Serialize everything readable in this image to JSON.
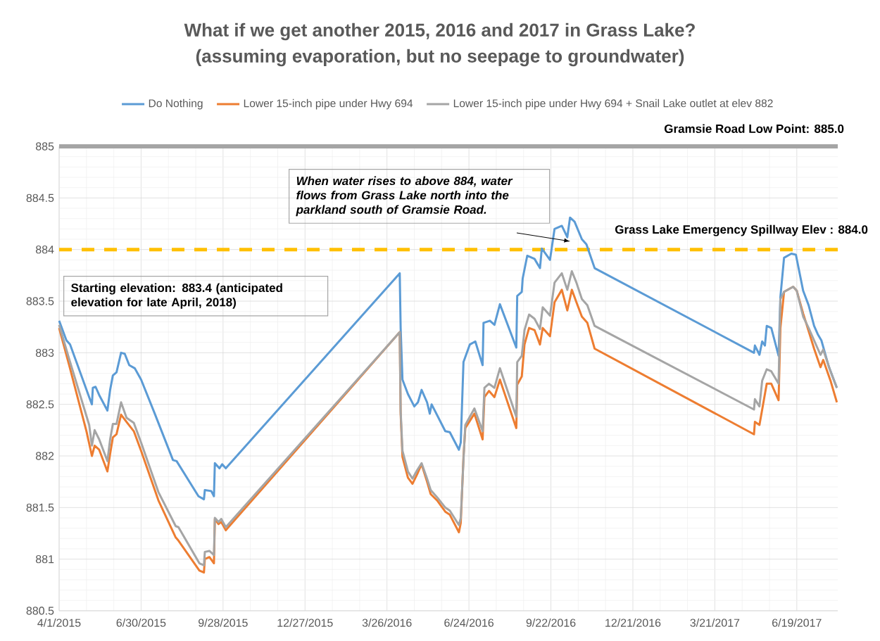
{
  "chart_data": {
    "type": "line",
    "title": "What if we get another 2015, 2016 and 2017 in Grass Lake?",
    "subtitle": "(assuming evaporation, but no seepage to groundwater)",
    "xlim": [
      "2015-04-01",
      "2017-08-03"
    ],
    "xticks": [
      {
        "value": "2015-04-01",
        "label": "4/1/2015"
      },
      {
        "value": "2015-06-30",
        "label": "6/30/2015"
      },
      {
        "value": "2015-09-28",
        "label": "9/28/2015"
      },
      {
        "value": "2015-12-27",
        "label": "12/27/2015"
      },
      {
        "value": "2016-03-26",
        "label": "3/26/2016"
      },
      {
        "value": "2016-06-24",
        "label": "6/24/2016"
      },
      {
        "value": "2016-09-22",
        "label": "9/22/2016"
      },
      {
        "value": "2016-12-21",
        "label": "12/21/2016"
      },
      {
        "value": "2017-03-21",
        "label": "3/21/2017"
      },
      {
        "value": "2017-06-19",
        "label": "6/19/2017"
      }
    ],
    "ylim": [
      880.5,
      885
    ],
    "yticks": [
      880.5,
      881,
      881.5,
      882,
      882.5,
      883,
      883.5,
      884,
      884.5,
      885
    ],
    "grid": true,
    "legend": "top",
    "ref_lines": [
      {
        "axis": "y",
        "value": 885,
        "label": "Gramsie Road Low Point: 885.0",
        "color": "#a5a5a5",
        "line_style": "solid"
      },
      {
        "axis": "y",
        "value": 884,
        "label": "Grass Lake Emergency Spillway Elev : 884.0",
        "color": "#ffc000",
        "line_style": "dashed"
      }
    ],
    "annotations": [
      "When water rises to above 884, water flows from Grass Lake north into the parkland south of Gramsie Road.",
      "Starting elevation: 883.4 (anticipated elevation for late April, 2018)"
    ],
    "series": [
      {
        "name": "Do Nothing",
        "color": "#5b9bd5",
        "x": [
          "2015-04-01",
          "2015-04-09",
          "2015-04-13",
          "2015-04-20",
          "2015-05-04",
          "2015-05-07",
          "2015-05-08",
          "2015-05-11",
          "2015-05-15",
          "2015-05-24",
          "2015-05-27",
          "2015-05-30",
          "2015-06-03",
          "2015-06-08",
          "2015-06-12",
          "2015-06-17",
          "2015-06-23",
          "2015-06-30",
          "2015-07-15",
          "2015-08-04",
          "2015-08-08",
          "2015-09-01",
          "2015-09-07",
          "2015-09-08",
          "2015-09-15",
          "2015-09-18",
          "2015-09-19",
          "2015-09-24",
          "2015-09-27",
          "2015-10-01",
          "2016-04-09",
          "2016-04-10",
          "2016-04-12",
          "2016-04-18",
          "2016-04-25",
          "2016-04-29",
          "2016-05-03",
          "2016-05-09",
          "2016-05-12",
          "2016-05-14",
          "2016-05-29",
          "2016-06-03",
          "2016-06-13",
          "2016-06-15",
          "2016-06-18",
          "2016-06-25",
          "2016-07-01",
          "2016-07-09",
          "2016-07-10",
          "2016-07-17",
          "2016-07-22",
          "2016-07-28",
          "2016-08-15",
          "2016-08-16",
          "2016-08-21",
          "2016-08-22",
          "2016-08-27",
          "2016-09-04",
          "2016-09-10",
          "2016-09-12",
          "2016-09-21",
          "2016-09-26",
          "2016-10-04",
          "2016-10-10",
          "2016-10-13",
          "2016-10-18",
          "2016-10-26",
          "2016-10-31",
          "2016-11-09",
          "2017-05-03",
          "2017-05-04",
          "2017-05-09",
          "2017-05-12",
          "2017-05-15",
          "2017-05-17",
          "2017-05-22",
          "2017-05-30",
          "2017-06-01",
          "2017-06-05",
          "2017-06-13",
          "2017-06-18",
          "2017-06-26",
          "2017-07-02",
          "2017-07-08",
          "2017-07-12",
          "2017-07-16",
          "2017-07-24",
          "2017-08-02"
        ],
        "values": [
          883.31,
          883.12,
          883.08,
          882.91,
          882.57,
          882.5,
          882.66,
          882.67,
          882.59,
          882.44,
          882.64,
          882.78,
          882.81,
          883.0,
          882.99,
          882.88,
          882.85,
          882.74,
          882.41,
          881.96,
          881.95,
          881.61,
          881.58,
          881.67,
          881.66,
          881.61,
          881.93,
          881.88,
          881.92,
          881.88,
          883.77,
          883.24,
          882.74,
          882.6,
          882.48,
          882.52,
          882.64,
          882.52,
          882.41,
          882.5,
          882.24,
          882.23,
          882.06,
          882.13,
          882.91,
          883.08,
          883.11,
          882.88,
          883.29,
          883.31,
          883.27,
          883.47,
          883.05,
          883.55,
          883.59,
          883.72,
          883.94,
          883.91,
          883.82,
          884.01,
          883.9,
          884.2,
          884.23,
          884.12,
          884.31,
          884.27,
          884.1,
          884.05,
          883.82,
          883.0,
          883.07,
          882.98,
          883.11,
          883.07,
          883.26,
          883.24,
          882.97,
          883.54,
          883.92,
          883.96,
          883.95,
          883.6,
          883.46,
          883.26,
          883.18,
          883.12,
          882.87,
          882.66
        ]
      },
      {
        "name": "Lower 15-inch pipe under Hwy 694",
        "color": "#ed7d31",
        "x": [
          "2015-04-01",
          "2015-04-12",
          "2015-05-01",
          "2015-05-07",
          "2015-05-10",
          "2015-05-15",
          "2015-05-24",
          "2015-05-27",
          "2015-05-30",
          "2015-06-03",
          "2015-06-08",
          "2015-06-14",
          "2015-06-22",
          "2015-06-30",
          "2015-07-19",
          "2015-08-07",
          "2015-08-10",
          "2015-09-02",
          "2015-09-07",
          "2015-09-08",
          "2015-09-13",
          "2015-09-18",
          "2015-09-19",
          "2015-09-23",
          "2015-09-26",
          "2015-10-01",
          "2016-04-09",
          "2016-04-10",
          "2016-04-12",
          "2016-04-18",
          "2016-04-23",
          "2016-04-28",
          "2016-05-03",
          "2016-05-09",
          "2016-05-13",
          "2016-05-20",
          "2016-05-29",
          "2016-06-03",
          "2016-06-13",
          "2016-06-15",
          "2016-06-18",
          "2016-06-20",
          "2016-06-30",
          "2016-07-09",
          "2016-07-11",
          "2016-07-16",
          "2016-07-22",
          "2016-07-28",
          "2016-08-15",
          "2016-08-16",
          "2016-08-21",
          "2016-08-24",
          "2016-08-29",
          "2016-09-04",
          "2016-09-10",
          "2016-09-13",
          "2016-09-21",
          "2016-09-26",
          "2016-10-04",
          "2016-10-10",
          "2016-10-15",
          "2016-10-20",
          "2016-10-26",
          "2016-11-01",
          "2016-11-09",
          "2017-05-03",
          "2017-05-04",
          "2017-05-09",
          "2017-05-12",
          "2017-05-17",
          "2017-05-22",
          "2017-05-30",
          "2017-06-01",
          "2017-06-05",
          "2017-06-15",
          "2017-06-19",
          "2017-06-26",
          "2017-07-02",
          "2017-07-08",
          "2017-07-15",
          "2017-07-18",
          "2017-07-26",
          "2017-08-02"
        ],
        "values": [
          883.24,
          882.88,
          882.24,
          882.0,
          882.1,
          882.06,
          881.85,
          882.02,
          882.18,
          882.21,
          882.4,
          882.33,
          882.24,
          882.05,
          881.57,
          881.21,
          881.18,
          880.89,
          880.87,
          881.0,
          881.02,
          880.96,
          881.39,
          881.34,
          881.36,
          881.28,
          883.2,
          882.41,
          881.99,
          881.79,
          881.73,
          881.82,
          881.92,
          881.75,
          881.63,
          881.57,
          881.46,
          881.43,
          881.26,
          881.35,
          881.99,
          882.27,
          882.41,
          882.16,
          882.57,
          882.63,
          882.57,
          882.74,
          882.27,
          882.69,
          882.77,
          883.08,
          883.24,
          883.22,
          883.08,
          883.24,
          883.16,
          883.49,
          883.61,
          883.41,
          883.61,
          883.49,
          883.35,
          883.29,
          883.04,
          882.21,
          882.33,
          882.3,
          882.45,
          882.7,
          882.7,
          882.54,
          883.24,
          883.59,
          883.64,
          883.6,
          883.38,
          883.21,
          883.04,
          882.86,
          882.93,
          882.73,
          882.52
        ]
      },
      {
        "name": "Lower 15-inch pipe under Hwy 694 + Snail Lake outlet at elev 882",
        "color": "#a5a5a5",
        "x": [
          "2015-04-01",
          "2015-04-12",
          "2015-05-04",
          "2015-05-07",
          "2015-05-10",
          "2015-05-15",
          "2015-05-24",
          "2015-05-27",
          "2015-05-30",
          "2015-06-03",
          "2015-06-08",
          "2015-06-14",
          "2015-06-22",
          "2015-06-30",
          "2015-07-19",
          "2015-08-07",
          "2015-08-10",
          "2015-09-02",
          "2015-09-07",
          "2015-09-08",
          "2015-09-13",
          "2015-09-18",
          "2015-09-19",
          "2015-09-23",
          "2015-09-26",
          "2015-10-01",
          "2016-04-09",
          "2016-04-10",
          "2016-04-12",
          "2016-04-18",
          "2016-04-23",
          "2016-04-28",
          "2016-05-03",
          "2016-05-09",
          "2016-05-13",
          "2016-05-20",
          "2016-05-29",
          "2016-06-03",
          "2016-06-13",
          "2016-06-15",
          "2016-06-18",
          "2016-06-20",
          "2016-06-30",
          "2016-07-09",
          "2016-07-11",
          "2016-07-16",
          "2016-07-22",
          "2016-07-28",
          "2016-08-15",
          "2016-08-16",
          "2016-08-21",
          "2016-08-24",
          "2016-08-29",
          "2016-09-04",
          "2016-09-10",
          "2016-09-13",
          "2016-09-21",
          "2016-09-26",
          "2016-10-04",
          "2016-10-10",
          "2016-10-15",
          "2016-10-20",
          "2016-10-26",
          "2016-11-01",
          "2016-11-09",
          "2017-05-03",
          "2017-05-04",
          "2017-05-09",
          "2017-05-12",
          "2017-05-17",
          "2017-05-22",
          "2017-05-30",
          "2017-06-01",
          "2017-06-05",
          "2017-06-15",
          "2017-06-19",
          "2017-06-26",
          "2017-07-02",
          "2017-07-08",
          "2017-07-15",
          "2017-07-18",
          "2017-07-26",
          "2017-08-02"
        ],
        "values": [
          883.27,
          882.94,
          882.3,
          882.1,
          882.25,
          882.16,
          881.95,
          882.16,
          882.31,
          882.31,
          882.52,
          882.37,
          882.32,
          882.13,
          881.65,
          881.32,
          881.31,
          880.96,
          880.94,
          881.07,
          881.08,
          881.04,
          881.4,
          881.36,
          881.39,
          881.31,
          883.2,
          882.44,
          882.05,
          881.85,
          881.78,
          881.86,
          881.93,
          881.78,
          881.67,
          881.6,
          881.5,
          881.47,
          881.33,
          881.4,
          881.96,
          882.3,
          882.46,
          882.24,
          882.66,
          882.7,
          882.66,
          882.85,
          882.38,
          882.91,
          882.97,
          883.22,
          883.37,
          883.33,
          883.23,
          883.44,
          883.36,
          883.68,
          883.77,
          883.61,
          883.79,
          883.68,
          883.52,
          883.46,
          883.26,
          882.45,
          882.55,
          882.48,
          882.73,
          882.84,
          882.82,
          882.7,
          883.52,
          883.59,
          883.64,
          883.6,
          883.35,
          883.24,
          883.12,
          882.98,
          883.03,
          882.82,
          882.66
        ]
      }
    ]
  }
}
